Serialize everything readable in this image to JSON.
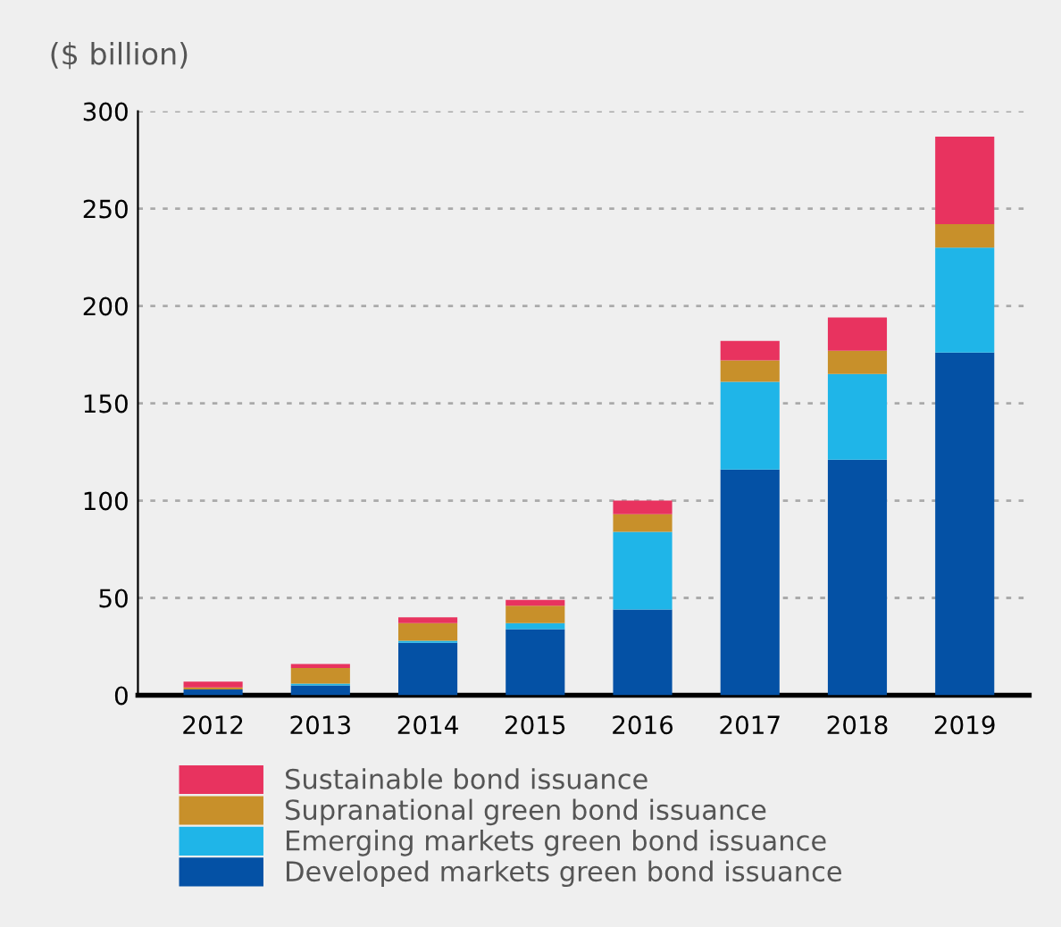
{
  "chart_data": {
    "type": "bar",
    "ylabel": "($ billion)",
    "stacked": true,
    "categories": [
      "2012",
      "2013",
      "2014",
      "2015",
      "2016",
      "2017",
      "2018",
      "2019"
    ],
    "series": [
      {
        "name": "Developed markets green bond issuance",
        "color": "#0451a5",
        "values": [
          3,
          5,
          27,
          34,
          44,
          116,
          121,
          176
        ]
      },
      {
        "name": "Emerging markets green bond issuance",
        "color": "#1fb5e8",
        "values": [
          0,
          1,
          1,
          3,
          40,
          45,
          44,
          54
        ]
      },
      {
        "name": "Supranational green bond issuance",
        "color": "#c8902a",
        "values": [
          1,
          8,
          9,
          9,
          9,
          11,
          12,
          12
        ]
      },
      {
        "name": "Sustainable bond issuance",
        "color": "#e8335f",
        "values": [
          3,
          2,
          3,
          3,
          7,
          10,
          17,
          45
        ]
      }
    ],
    "ylim": [
      0,
      300
    ],
    "yticks": [
      0,
      50,
      100,
      150,
      200,
      250,
      300
    ],
    "grid": "y",
    "legend": "bottom"
  }
}
